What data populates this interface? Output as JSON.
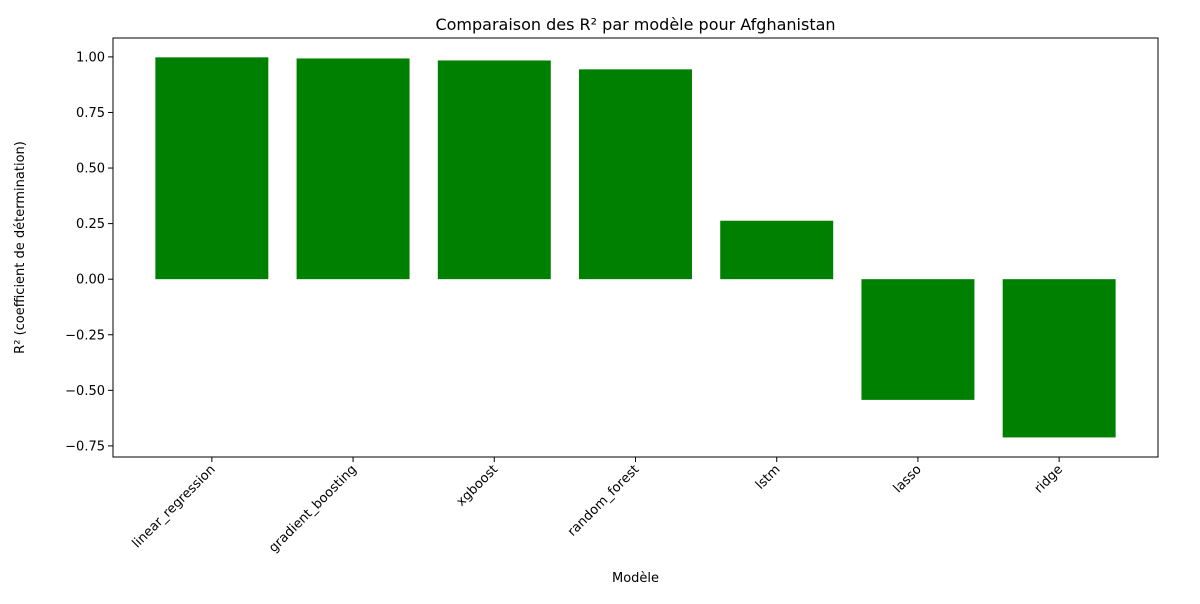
{
  "chart_data": {
    "type": "bar",
    "title": "Comparaison des R² par modèle pour Afghanistan",
    "xlabel": "Modèle",
    "ylabel": "R² (coefficient de détermination)",
    "categories": [
      "linear_regression",
      "gradient_boosting",
      "xgboost",
      "random_forest",
      "lstm",
      "lasso",
      "ridge"
    ],
    "values": [
      0.998,
      0.993,
      0.984,
      0.944,
      0.263,
      -0.543,
      -0.712
    ],
    "ylim": [
      -0.8,
      1.085
    ],
    "yticks": [
      -0.75,
      -0.5,
      -0.25,
      0.0,
      0.25,
      0.5,
      0.75,
      1.0
    ],
    "ytick_labels": [
      "−0.75",
      "−0.50",
      "−0.25",
      "0.00",
      "0.25",
      "0.50",
      "0.75",
      "1.00"
    ],
    "bar_color": "#008000",
    "grid": false,
    "legend": "none"
  }
}
